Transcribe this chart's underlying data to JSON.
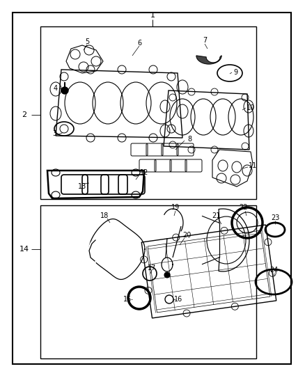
{
  "bg_color": "#ffffff",
  "line_color": "#000000",
  "gray_color": "#888888",
  "fig_w": 4.38,
  "fig_h": 5.33,
  "dpi": 100
}
